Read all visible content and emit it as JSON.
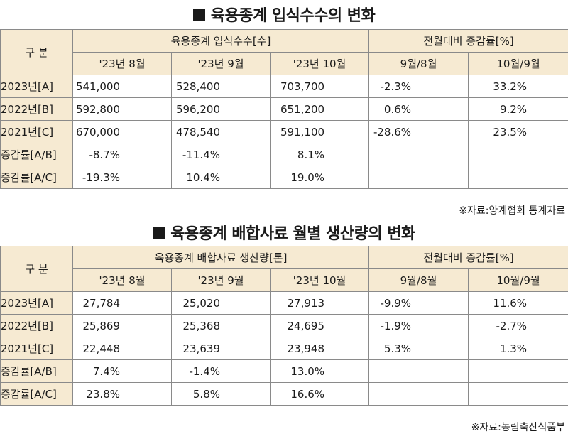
{
  "table1": {
    "title": "육용종계 입식수수의 변화",
    "corner": "구 분",
    "group_left": "육용종계 입식수수[수]",
    "group_right": "전월대비 증감률[%]",
    "subheaders": [
      "'23년 8월",
      "'23년 9월",
      "'23년 10월",
      "9월/8월",
      "10월/9월"
    ],
    "rows": [
      {
        "label": "2023년[A]",
        "cells": [
          "541,000",
          "528,400",
          "703,700",
          "-2.3%",
          "33.2%"
        ]
      },
      {
        "label": "2022년[B]",
        "cells": [
          "592,800",
          "596,200",
          "651,200",
          "0.6%",
          "9.2%"
        ]
      },
      {
        "label": "2021년[C]",
        "cells": [
          "670,000",
          "478,540",
          "591,100",
          "-28.6%",
          "23.5%"
        ]
      },
      {
        "label": "증감률[A/B]",
        "cells": [
          "-8.7%",
          "-11.4%",
          "8.1%",
          "",
          ""
        ]
      },
      {
        "label": "증감률[A/C]",
        "cells": [
          "-19.3%",
          "10.4%",
          "19.0%",
          "",
          ""
        ]
      }
    ],
    "source": "※자료:양계협회 통계자료"
  },
  "table2": {
    "title": "육용종계 배합사료 월별 생산량의 변화",
    "corner": "구 분",
    "group_left": "육용종계 배합사료 생산량[톤]",
    "group_right": "전월대비 증감률[%]",
    "subheaders": [
      "'23년 8월",
      "'23년 9월",
      "'23년 10월",
      "9월/8월",
      "10월/9월"
    ],
    "rows": [
      {
        "label": "2023년[A]",
        "cells": [
          "27,784",
          "25,020",
          "27,913",
          "-9.9%",
          "11.6%"
        ]
      },
      {
        "label": "2022년[B]",
        "cells": [
          "25,869",
          "25,368",
          "24,695",
          "-1.9%",
          "-2.7%"
        ]
      },
      {
        "label": "2021년[C]",
        "cells": [
          "22,448",
          "23,639",
          "23,948",
          "5.3%",
          "1.3%"
        ]
      },
      {
        "label": "증감률[A/B]",
        "cells": [
          "7.4%",
          "-1.4%",
          "13.0%",
          "",
          ""
        ]
      },
      {
        "label": "증감률[A/C]",
        "cells": [
          "23.8%",
          "5.8%",
          "16.6%",
          "",
          ""
        ]
      }
    ],
    "source": "※자료:농림축산식품부"
  }
}
